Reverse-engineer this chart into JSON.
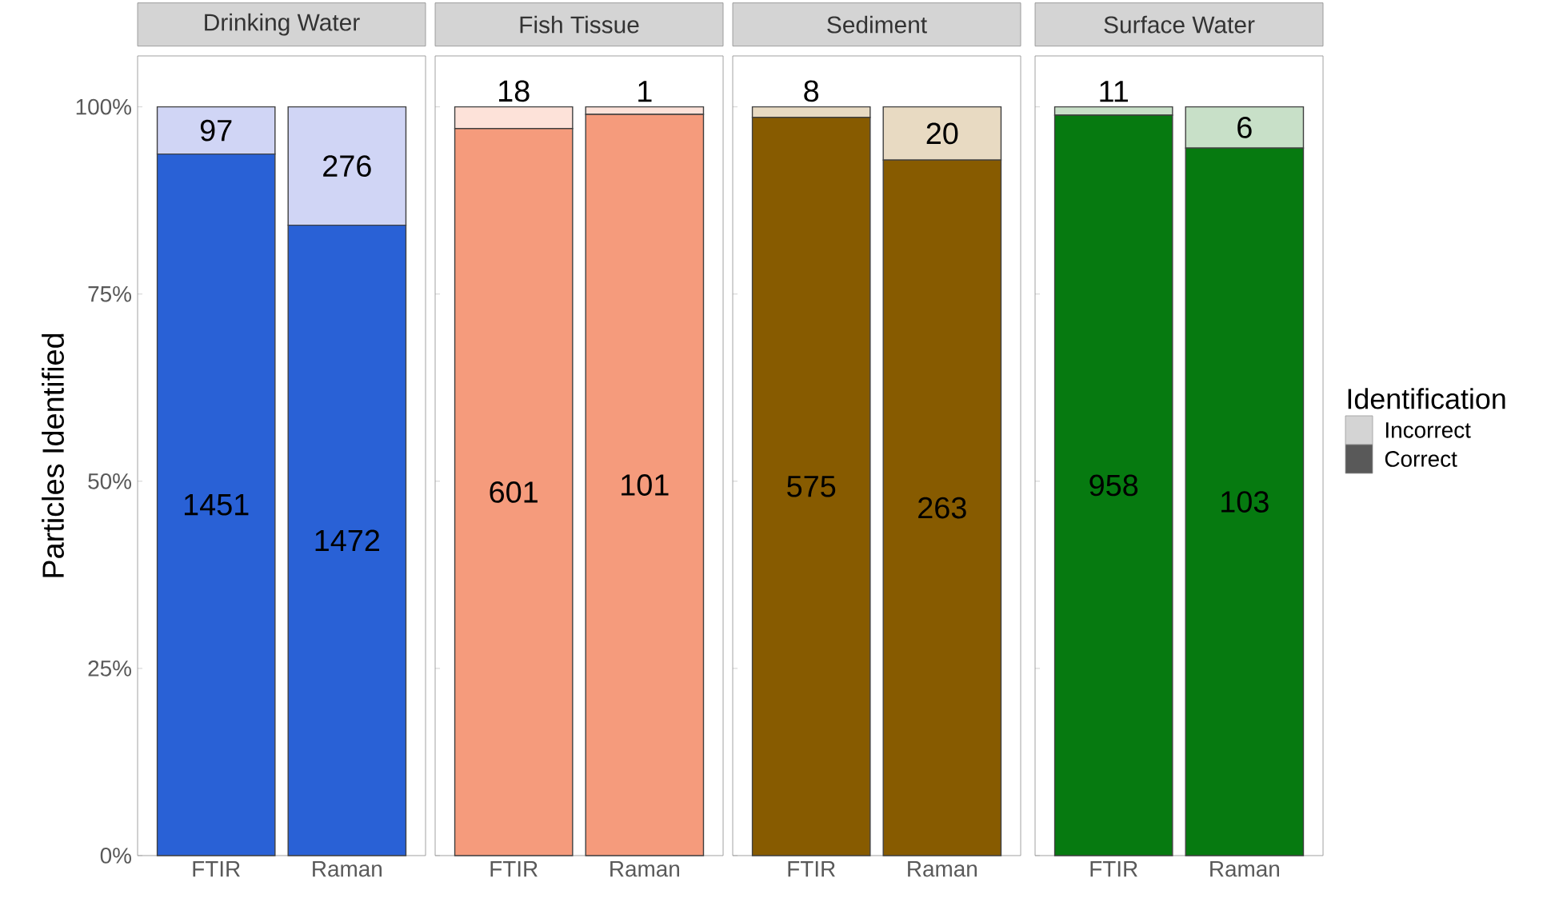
{
  "chart_data": [
    {
      "type": "bar",
      "stacked": true,
      "title": "Drinking Water",
      "ylabel": "Particles Identified",
      "categories": [
        "FTIR",
        "Raman"
      ],
      "ylim": [
        0,
        106.8
      ],
      "yticks": [
        {
          "value": 0,
          "label": "0%"
        },
        {
          "value": 25,
          "label": "25%"
        },
        {
          "value": 50,
          "label": "50%"
        },
        {
          "value": 75,
          "label": "75%"
        },
        {
          "value": 100,
          "label": "100%"
        }
      ],
      "series": [
        {
          "color": "#2961d6",
          "values": [
            93.7,
            84.2
          ]
        },
        {
          "color": "#d0d5f5",
          "values": [
            6.3,
            15.8
          ]
        }
      ],
      "annotations": [
        "1451",
        "1472",
        "97",
        "276"
      ]
    },
    {
      "type": "bar",
      "stacked": true,
      "title": "Fish Tissue",
      "categories": [
        "FTIR",
        "Raman"
      ],
      "ylim": [
        0,
        106.8
      ],
      "yticks": [
        {
          "value": 0,
          "label": null
        },
        {
          "value": 25,
          "label": null
        },
        {
          "value": 50,
          "label": null
        },
        {
          "value": 75,
          "label": null
        },
        {
          "value": 100,
          "label": null
        }
      ],
      "tick_labels": "x",
      "series": [
        {
          "color": "#f59b7c",
          "values": [
            97.1,
            99.0
          ]
        },
        {
          "color": "#fde2d9",
          "values": [
            2.9,
            1.0
          ]
        }
      ],
      "annotations": [
        "601",
        "101",
        "18",
        "1"
      ]
    },
    {
      "type": "bar",
      "stacked": true,
      "title": "Sediment",
      "categories": [
        "FTIR",
        "Raman"
      ],
      "ylim": [
        0,
        106.8
      ],
      "yticks": [
        {
          "value": 0,
          "label": null
        },
        {
          "value": 25,
          "label": null
        },
        {
          "value": 50,
          "label": null
        },
        {
          "value": 75,
          "label": null
        },
        {
          "value": 100,
          "label": null
        }
      ],
      "tick_labels": "x",
      "series": [
        {
          "color": "#875b00",
          "values": [
            98.6,
            92.9
          ]
        },
        {
          "color": "#e8dac2",
          "values": [
            1.4,
            7.1
          ]
        }
      ],
      "annotations": [
        "575",
        "263",
        "8",
        "20"
      ]
    },
    {
      "type": "bar",
      "stacked": true,
      "title": "Surface Water",
      "categories": [
        "FTIR",
        "Raman"
      ],
      "ylim": [
        0,
        106.8
      ],
      "yticks": [
        {
          "value": 0,
          "label": null
        },
        {
          "value": 25,
          "label": null
        },
        {
          "value": 50,
          "label": null
        },
        {
          "value": 75,
          "label": null
        },
        {
          "value": 100,
          "label": null
        }
      ],
      "tick_labels": "x",
      "legend": "right",
      "legend_title": "Identification",
      "series": [
        {
          "name": "Correct",
          "color": "#067a10",
          "values": [
            98.9,
            94.5
          ]
        },
        {
          "name": "Incorrect",
          "color": "#c8e0c8",
          "values": [
            1.1,
            5.5
          ]
        }
      ],
      "annotations": [
        "958",
        "103",
        "11",
        "6"
      ]
    }
  ]
}
